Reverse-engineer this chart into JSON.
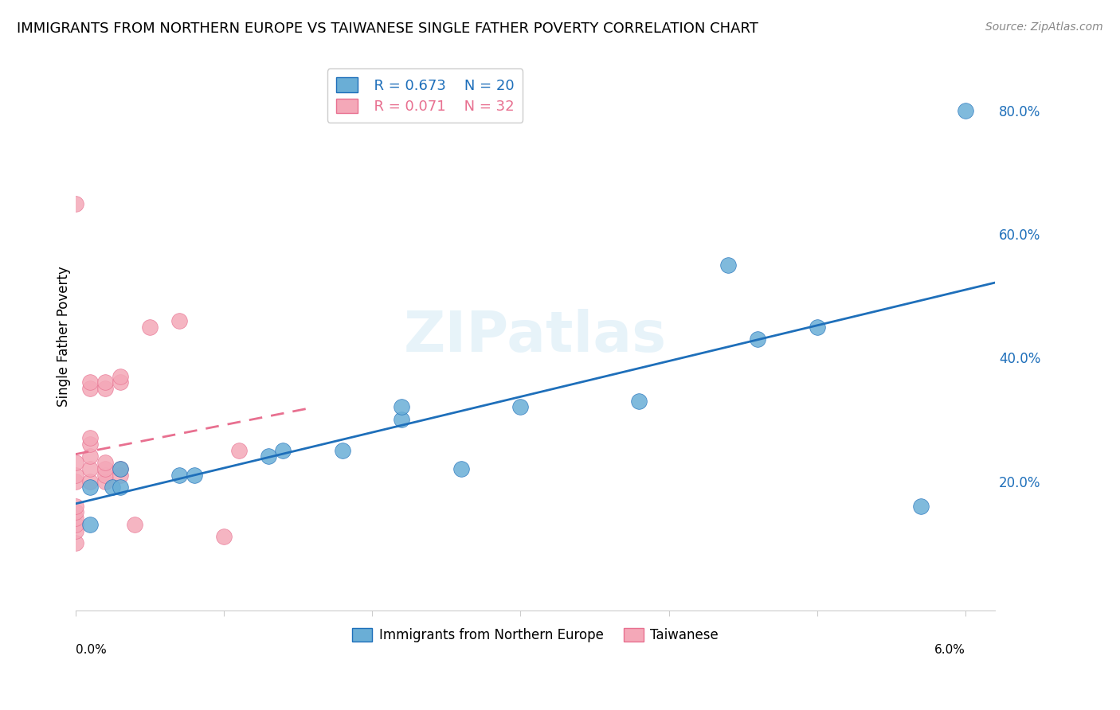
{
  "title": "IMMIGRANTS FROM NORTHERN EUROPE VS TAIWANESE SINGLE FATHER POVERTY CORRELATION CHART",
  "source": "Source: ZipAtlas.com",
  "ylabel": "Single Father Poverty",
  "ytick_labels": [
    "20.0%",
    "40.0%",
    "60.0%",
    "80.0%"
  ],
  "ytick_values": [
    0.2,
    0.4,
    0.6,
    0.8
  ],
  "xlim": [
    0.0,
    0.062
  ],
  "ylim": [
    -0.01,
    0.88
  ],
  "legend_blue_r": "R = 0.673",
  "legend_blue_n": "N = 20",
  "legend_pink_r": "R = 0.071",
  "legend_pink_n": "N = 32",
  "blue_scatter_x": [
    0.001,
    0.001,
    0.0025,
    0.003,
    0.003,
    0.007,
    0.008,
    0.013,
    0.014,
    0.018,
    0.022,
    0.022,
    0.026,
    0.03,
    0.038,
    0.044,
    0.046,
    0.05,
    0.057,
    0.06
  ],
  "blue_scatter_y": [
    0.13,
    0.19,
    0.19,
    0.19,
    0.22,
    0.21,
    0.21,
    0.24,
    0.25,
    0.25,
    0.3,
    0.32,
    0.22,
    0.32,
    0.33,
    0.55,
    0.43,
    0.45,
    0.16,
    0.8
  ],
  "pink_scatter_x": [
    0.0,
    0.0,
    0.0,
    0.0,
    0.0,
    0.0,
    0.0,
    0.0,
    0.0,
    0.0,
    0.001,
    0.001,
    0.001,
    0.001,
    0.001,
    0.001,
    0.001,
    0.002,
    0.002,
    0.002,
    0.002,
    0.002,
    0.002,
    0.003,
    0.003,
    0.003,
    0.003,
    0.004,
    0.005,
    0.007,
    0.01,
    0.011
  ],
  "pink_scatter_y": [
    0.1,
    0.12,
    0.13,
    0.14,
    0.15,
    0.16,
    0.2,
    0.21,
    0.23,
    0.65,
    0.2,
    0.22,
    0.24,
    0.26,
    0.27,
    0.35,
    0.36,
    0.2,
    0.21,
    0.22,
    0.23,
    0.35,
    0.36,
    0.21,
    0.22,
    0.36,
    0.37,
    0.13,
    0.45,
    0.46,
    0.11,
    0.25
  ],
  "blue_color": "#6aaed6",
  "pink_color": "#f4a8b8",
  "blue_line_color": "#1e6fba",
  "pink_line_color": "#e87090",
  "watermark": "ZIPatlas",
  "grid_color": "#e0e0e0",
  "pink_line_xlim": [
    0.0,
    0.016
  ]
}
